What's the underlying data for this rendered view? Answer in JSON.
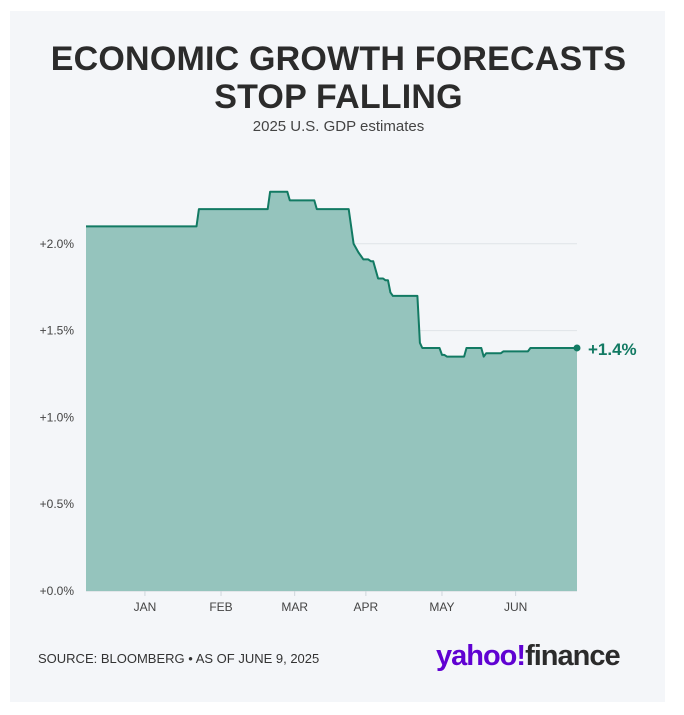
{
  "header": {
    "title_line1": "ECONOMIC GROWTH FORECASTS",
    "title_line2": "STOP FALLING",
    "subtitle": "2025 U.S. GDP estimates"
  },
  "footer": {
    "source": "SOURCE: BLOOMBERG • AS OF JUNE 9, 2025",
    "logo_text": "yahoo!",
    "logo_suffix": "finance"
  },
  "colors": {
    "line": "#127a63",
    "fill": "#95c4bd",
    "logo": "#6001d2"
  },
  "chart_data": {
    "type": "area",
    "title": "ECONOMIC GROWTH FORECASTS STOP FALLING",
    "subtitle": "2025 U.S. GDP estimates",
    "xlabel": "",
    "ylabel": "",
    "ylim": [
      0,
      2.5
    ],
    "grid": true,
    "yticks": [
      {
        "value": 2.0,
        "label": "+2.0%"
      },
      {
        "value": 1.5,
        "label": "+1.5%"
      },
      {
        "value": 1.0,
        "label": "+1.0%"
      },
      {
        "value": 0.5,
        "label": "+0.5%"
      },
      {
        "value": 0.0,
        "label": "+0.0%"
      }
    ],
    "xticks": [
      {
        "date": "2024-12-15",
        "label": "JAN"
      },
      {
        "date": "2025-01-15",
        "label": "FEB"
      },
      {
        "date": "2025-02-14",
        "label": "MAR"
      },
      {
        "date": "2025-03-15",
        "label": "APR"
      },
      {
        "date": "2025-04-15",
        "label": "MAY"
      },
      {
        "date": "2025-05-15",
        "label": "JUN"
      }
    ],
    "xrange": [
      "2024-11-21",
      "2025-06-09"
    ],
    "end_label": "+1.4%",
    "points": [
      [
        "2024-11-21",
        2.1
      ],
      [
        "2025-01-05",
        2.1
      ],
      [
        "2025-01-06",
        2.2
      ],
      [
        "2025-02-03",
        2.2
      ],
      [
        "2025-02-04",
        2.3
      ],
      [
        "2025-02-11",
        2.3
      ],
      [
        "2025-02-12",
        2.25
      ],
      [
        "2025-02-22",
        2.25
      ],
      [
        "2025-02-23",
        2.2
      ],
      [
        "2025-03-08",
        2.2
      ],
      [
        "2025-03-10",
        2.0
      ],
      [
        "2025-03-12",
        1.95
      ],
      [
        "2025-03-13",
        1.93
      ],
      [
        "2025-03-14",
        1.91
      ],
      [
        "2025-03-16",
        1.91
      ],
      [
        "2025-03-17",
        1.9
      ],
      [
        "2025-03-18",
        1.9
      ],
      [
        "2025-03-20",
        1.8
      ],
      [
        "2025-03-22",
        1.8
      ],
      [
        "2025-03-23",
        1.79
      ],
      [
        "2025-03-24",
        1.79
      ],
      [
        "2025-03-25",
        1.72
      ],
      [
        "2025-03-26",
        1.7
      ],
      [
        "2025-04-05",
        1.7
      ],
      [
        "2025-04-06",
        1.43
      ],
      [
        "2025-04-07",
        1.4
      ],
      [
        "2025-04-14",
        1.4
      ],
      [
        "2025-04-15",
        1.36
      ],
      [
        "2025-04-16",
        1.36
      ],
      [
        "2025-04-17",
        1.35
      ],
      [
        "2025-04-24",
        1.35
      ],
      [
        "2025-04-25",
        1.4
      ],
      [
        "2025-05-01",
        1.4
      ],
      [
        "2025-05-02",
        1.35
      ],
      [
        "2025-05-03",
        1.37
      ],
      [
        "2025-05-09",
        1.37
      ],
      [
        "2025-05-10",
        1.38
      ],
      [
        "2025-05-20",
        1.38
      ],
      [
        "2025-05-21",
        1.4
      ],
      [
        "2025-06-09",
        1.4
      ]
    ]
  }
}
